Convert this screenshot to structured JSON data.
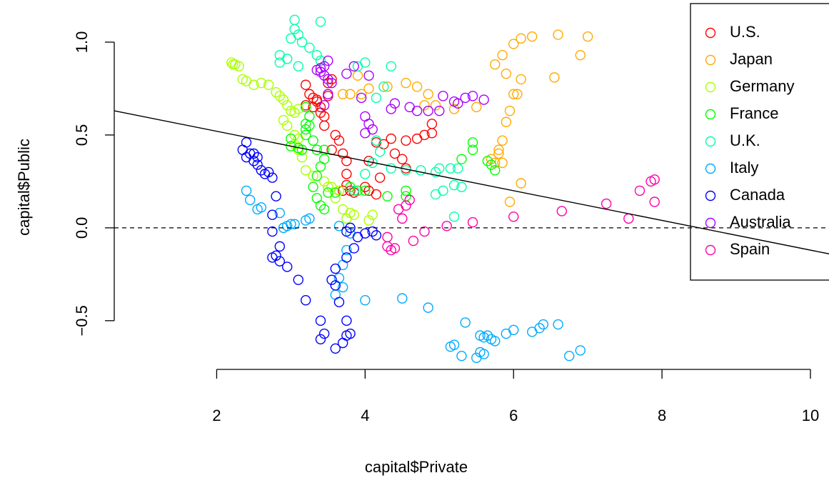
{
  "chart_data": {
    "type": "scatter",
    "x_label": "capital$Private",
    "y_label": "capital$Public",
    "xlim": [
      0.62,
      10.25
    ],
    "ylim": [
      -0.72,
      1.15
    ],
    "xticks": [
      2,
      4,
      6,
      8,
      10
    ],
    "yticks": [
      {
        "value": -0.5,
        "label": "−0.5"
      },
      {
        "value": 0,
        "label": "0.0"
      },
      0.5,
      {
        "value": 1,
        "label": "1.0"
      }
    ],
    "hline": 0,
    "fit_line": {
      "intercept": 0.68,
      "slope": -0.08
    },
    "legend": "topright",
    "series": [
      {
        "name": "U.S.",
        "color": "#ff0000",
        "x": [
          3.2,
          3.25,
          3.3,
          3.35,
          3.4,
          3.4,
          3.45,
          3.5,
          3.55,
          3.5,
          3.45,
          3.55,
          3.6,
          3.65,
          3.7,
          3.75,
          3.75,
          3.75,
          3.8,
          3.7,
          3.85,
          4.0,
          4.05,
          4.15,
          4.2,
          4.05,
          4.15,
          4.25,
          4.35,
          4.4,
          4.5,
          4.55,
          4.7,
          4.8,
          4.9,
          4.9,
          4.55,
          3.35,
          3.3,
          3.2
        ],
        "values": [
          0.77,
          0.72,
          0.7,
          0.68,
          0.65,
          0.62,
          0.6,
          0.78,
          0.8,
          0.71,
          0.55,
          0.42,
          0.5,
          0.47,
          0.4,
          0.36,
          0.29,
          0.23,
          0.2,
          0.2,
          0.19,
          0.22,
          0.2,
          0.18,
          0.27,
          0.36,
          0.46,
          0.45,
          0.48,
          0.4,
          0.37,
          0.32,
          0.48,
          0.5,
          0.51,
          0.56,
          0.47,
          0.69,
          0.65,
          0.66
        ]
      },
      {
        "name": "Japan",
        "color": "#ffaa00",
        "x": [
          3.7,
          3.8,
          3.9,
          4.05,
          4.3,
          4.55,
          4.7,
          4.85,
          4.8,
          4.95,
          5.2,
          5.5,
          5.7,
          5.8,
          5.85,
          5.75,
          5.8,
          5.85,
          5.9,
          5.95,
          6.0,
          6.05,
          6.1,
          5.9,
          5.75,
          5.85,
          6.0,
          6.1,
          6.25,
          6.6,
          7.0,
          6.9,
          6.55,
          5.95,
          6.1,
          3.95
        ],
        "values": [
          0.72,
          0.72,
          0.82,
          0.75,
          0.76,
          0.78,
          0.76,
          0.72,
          0.66,
          0.66,
          0.64,
          0.65,
          0.37,
          0.4,
          0.35,
          0.35,
          0.42,
          0.47,
          0.57,
          0.63,
          0.72,
          0.72,
          0.8,
          0.83,
          0.88,
          0.93,
          0.99,
          1.02,
          1.03,
          1.04,
          1.03,
          0.93,
          0.81,
          0.14,
          0.24,
          0.72
        ]
      },
      {
        "name": "Germany",
        "color": "#aaff00",
        "x": [
          2.2,
          2.22,
          2.25,
          2.3,
          2.35,
          2.4,
          2.5,
          2.6,
          2.7,
          2.8,
          2.85,
          2.9,
          2.95,
          3.0,
          3.05,
          3.1,
          2.9,
          2.95,
          3.05,
          3.1,
          3.05,
          3.1,
          3.15,
          3.2,
          3.3,
          3.45,
          3.55,
          3.65,
          3.7,
          3.75,
          3.8,
          3.85,
          4.1,
          4.05,
          3.5,
          3.6
        ],
        "values": [
          0.89,
          0.88,
          0.88,
          0.87,
          0.8,
          0.79,
          0.77,
          0.78,
          0.77,
          0.73,
          0.71,
          0.69,
          0.66,
          0.63,
          0.62,
          0.64,
          0.58,
          0.55,
          0.5,
          0.48,
          0.45,
          0.42,
          0.38,
          0.31,
          0.28,
          0.25,
          0.22,
          0.2,
          0.1,
          0.05,
          0.08,
          0.07,
          0.07,
          0.04,
          0.22,
          0.16
        ]
      },
      {
        "name": "France",
        "color": "#00ff00",
        "x": [
          3.2,
          3.25,
          3.2,
          3.2,
          3.2,
          3.25,
          3.0,
          3.0,
          3.1,
          3.3,
          3.35,
          3.45,
          3.45,
          3.4,
          3.35,
          3.3,
          3.35,
          3.4,
          3.45,
          3.5,
          3.6,
          3.8,
          3.9,
          4.0,
          4.3,
          4.55,
          4.55,
          5.3,
          5.45,
          5.45,
          5.65,
          5.75,
          5.7,
          3.15
        ],
        "values": [
          0.65,
          0.6,
          0.56,
          0.53,
          0.5,
          0.55,
          0.48,
          0.44,
          0.43,
          0.47,
          0.42,
          0.42,
          0.37,
          0.33,
          0.28,
          0.22,
          0.16,
          0.12,
          0.1,
          0.19,
          0.19,
          0.22,
          0.2,
          0.2,
          0.17,
          0.17,
          0.2,
          0.37,
          0.42,
          0.46,
          0.36,
          0.31,
          0.34,
          0.42
        ]
      },
      {
        "name": "U.K.",
        "color": "#00ffaa",
        "x": [
          3.05,
          3.4,
          3.05,
          3.1,
          3.0,
          3.15,
          3.25,
          3.35,
          3.4,
          2.85,
          2.85,
          2.95,
          3.1,
          3.9,
          4.0,
          4.35,
          4.15,
          4.25,
          4.15,
          4.2,
          4.1,
          4.0,
          4.35,
          4.55,
          4.75,
          4.95,
          5.0,
          5.15,
          5.25,
          5.2,
          5.05,
          4.95,
          5.3,
          5.2,
          3.85
        ],
        "values": [
          1.12,
          1.11,
          1.07,
          1.04,
          1.02,
          1.0,
          0.97,
          0.93,
          0.9,
          0.93,
          0.89,
          0.91,
          0.87,
          0.87,
          0.89,
          0.87,
          0.7,
          0.76,
          0.47,
          0.41,
          0.35,
          0.29,
          0.32,
          0.31,
          0.31,
          0.3,
          0.32,
          0.32,
          0.32,
          0.23,
          0.2,
          0.18,
          0.22,
          0.06,
          0.2
        ]
      },
      {
        "name": "Italy",
        "color": "#00aaff",
        "x": [
          2.4,
          2.45,
          2.55,
          2.6,
          2.85,
          2.9,
          2.95,
          3.0,
          3.05,
          3.2,
          3.25,
          3.65,
          3.8,
          3.75,
          3.7,
          3.65,
          3.6,
          3.7,
          4.0,
          4.5,
          4.85,
          5.35,
          5.15,
          5.2,
          5.3,
          5.5,
          5.55,
          5.6,
          5.6,
          5.65,
          5.7,
          5.75,
          5.9,
          6.0,
          6.25,
          6.35,
          6.4,
          6.6,
          6.75,
          6.9,
          5.55
        ],
        "values": [
          0.2,
          0.15,
          0.1,
          0.11,
          0.08,
          0.0,
          0.01,
          0.02,
          0.02,
          0.04,
          0.05,
          0.01,
          -0.03,
          -0.12,
          -0.2,
          -0.27,
          -0.36,
          -0.32,
          -0.39,
          -0.38,
          -0.43,
          -0.51,
          -0.64,
          -0.63,
          -0.69,
          -0.7,
          -0.67,
          -0.68,
          -0.59,
          -0.58,
          -0.6,
          -0.61,
          -0.57,
          -0.55,
          -0.56,
          -0.54,
          -0.52,
          -0.52,
          -0.69,
          -0.66,
          -0.58
        ]
      },
      {
        "name": "Canada",
        "color": "#0000ff",
        "x": [
          2.4,
          2.35,
          2.45,
          2.4,
          2.5,
          2.55,
          2.5,
          2.55,
          2.6,
          2.65,
          2.7,
          2.75,
          2.8,
          2.75,
          2.75,
          2.85,
          2.75,
          2.85,
          2.8,
          2.95,
          3.1,
          3.2,
          3.4,
          3.45,
          3.4,
          3.6,
          3.7,
          3.75,
          3.8,
          3.75,
          3.55,
          3.6,
          3.6,
          3.65,
          3.75,
          3.85,
          3.9,
          4.0,
          4.1,
          4.15,
          3.8,
          3.75
        ],
        "values": [
          0.46,
          0.42,
          0.4,
          0.38,
          0.4,
          0.38,
          0.36,
          0.34,
          0.31,
          0.29,
          0.3,
          0.27,
          0.17,
          0.07,
          -0.02,
          -0.1,
          -0.16,
          -0.18,
          -0.15,
          -0.21,
          -0.28,
          -0.39,
          -0.5,
          -0.57,
          -0.6,
          -0.65,
          -0.62,
          -0.58,
          -0.57,
          -0.5,
          -0.28,
          -0.22,
          -0.31,
          -0.4,
          -0.16,
          -0.11,
          -0.05,
          -0.03,
          -0.02,
          -0.04,
          0.0,
          -0.02
        ]
      },
      {
        "name": "Australia",
        "color": "#aa00ff",
        "x": [
          3.4,
          3.45,
          3.5,
          3.4,
          3.45,
          3.5,
          3.55,
          3.75,
          3.85,
          4.05,
          3.95,
          4.0,
          4.05,
          4.1,
          4.0,
          4.35,
          4.4,
          4.6,
          4.7,
          4.85,
          5.0,
          5.05,
          5.2,
          5.25,
          5.35,
          5.45,
          5.6,
          3.5,
          3.45,
          3.35
        ],
        "values": [
          0.86,
          0.87,
          0.9,
          0.84,
          0.82,
          0.8,
          0.78,
          0.83,
          0.87,
          0.82,
          0.7,
          0.6,
          0.56,
          0.53,
          0.51,
          0.64,
          0.67,
          0.65,
          0.63,
          0.63,
          0.63,
          0.71,
          0.68,
          0.67,
          0.7,
          0.71,
          0.69,
          0.72,
          0.66,
          0.85
        ]
      },
      {
        "name": "Spain",
        "color": "#ff00aa",
        "x": [
          4.3,
          4.3,
          4.35,
          4.4,
          4.5,
          4.55,
          4.6,
          4.65,
          4.8,
          5.1,
          5.45,
          6.0,
          6.65,
          7.25,
          7.55,
          7.7,
          7.85,
          7.9,
          7.9,
          4.45
        ],
        "values": [
          -0.05,
          -0.1,
          -0.12,
          -0.11,
          0.05,
          0.12,
          0.15,
          -0.07,
          -0.02,
          0.01,
          0.03,
          0.06,
          0.09,
          0.13,
          0.05,
          0.2,
          0.25,
          0.14,
          0.26,
          0.1
        ]
      }
    ]
  }
}
